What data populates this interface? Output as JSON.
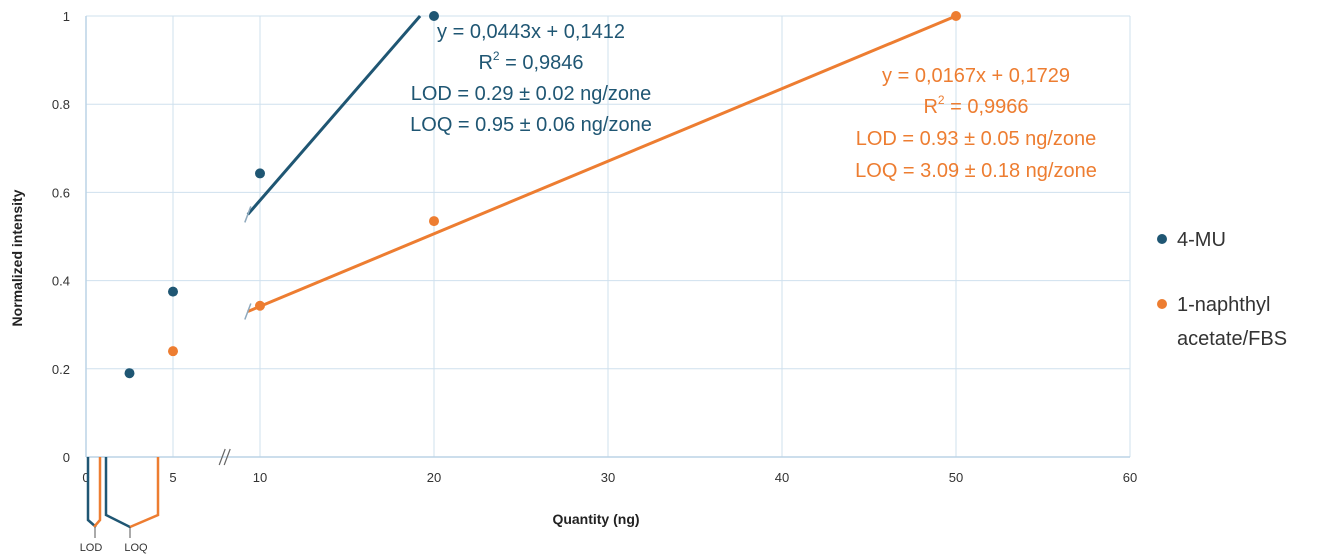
{
  "chart_data": {
    "type": "scatter",
    "xlabel": "Quantity (ng)",
    "ylabel": "Normalized intensity",
    "xlim": [
      0,
      60
    ],
    "ylim": [
      0,
      1
    ],
    "x_ticks": [
      "0",
      "5",
      "10",
      "20",
      "30",
      "40",
      "50",
      "60"
    ],
    "y_ticks": [
      "0",
      "0.2",
      "0.4",
      "0.6",
      "0.8",
      "1"
    ],
    "grid": true,
    "legend_position": "right",
    "series": [
      {
        "name": "4-MU",
        "color": "#1f5673",
        "points": [
          {
            "x": 2.5,
            "y": 0.19
          },
          {
            "x": 5,
            "y": 0.375
          },
          {
            "x": 10,
            "y": 0.643
          },
          {
            "x": 20,
            "y": 1.0
          }
        ],
        "trendline": {
          "x_start": 9.3,
          "x_end": 19.2,
          "y_start": 0.55,
          "y_end": 1.0
        },
        "equation": "y = 0,0443x + 0,1412",
        "r2_label": "R",
        "r2_sup": "2",
        "r2_value": " = 0,9846",
        "lod": "LOD = 0.29 ± 0.02 ng/zone",
        "loq": "LOQ = 0.95 ± 0.06 ng/zone"
      },
      {
        "name": "1-naphthyl acetate/FBS",
        "legend_lines": [
          "1-naphthyl",
          "acetate/FBS"
        ],
        "color": "#ed7d31",
        "points": [
          {
            "x": 5,
            "y": 0.24
          },
          {
            "x": 10,
            "y": 0.343
          },
          {
            "x": 20,
            "y": 0.535
          },
          {
            "x": 50,
            "y": 1.0
          }
        ],
        "trendline": {
          "x_start": 9.3,
          "x_end": 50,
          "y_start": 0.33,
          "y_end": 1.0
        },
        "equation": "y = 0,0167x + 0,1729",
        "r2_label": "R",
        "r2_sup": "2",
        "r2_value": " = 0,9966",
        "lod": "LOD = 0.93 ± 0.05 ng/zone",
        "loq": "LOQ = 3.09 ± 0.18 ng/zone"
      }
    ],
    "annotations": {
      "lod_label": "LOD",
      "loq_label": "LOQ"
    }
  }
}
